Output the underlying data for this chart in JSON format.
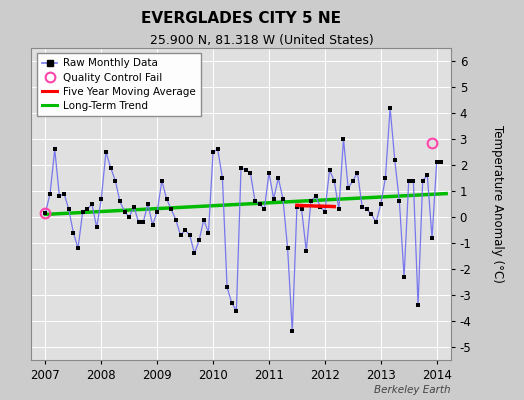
{
  "title": "EVERGLADES CITY 5 NE",
  "subtitle": "25.900 N, 81.318 W (United States)",
  "ylabel": "Temperature Anomaly (°C)",
  "watermark": "Berkeley Earth",
  "ylim": [
    -5.5,
    6.5
  ],
  "yticks": [
    -5,
    -4,
    -3,
    -2,
    -1,
    0,
    1,
    2,
    3,
    4,
    5,
    6
  ],
  "xlim": [
    2006.75,
    2014.25
  ],
  "xticks": [
    2007,
    2008,
    2009,
    2010,
    2011,
    2012,
    2013,
    2014
  ],
  "background_color": "#cccccc",
  "plot_bg_color": "#e0e0e0",
  "raw_data": {
    "x": [
      2007.0,
      2007.083,
      2007.167,
      2007.25,
      2007.333,
      2007.417,
      2007.5,
      2007.583,
      2007.667,
      2007.75,
      2007.833,
      2007.917,
      2008.0,
      2008.083,
      2008.167,
      2008.25,
      2008.333,
      2008.417,
      2008.5,
      2008.583,
      2008.667,
      2008.75,
      2008.833,
      2008.917,
      2009.0,
      2009.083,
      2009.167,
      2009.25,
      2009.333,
      2009.417,
      2009.5,
      2009.583,
      2009.667,
      2009.75,
      2009.833,
      2009.917,
      2010.0,
      2010.083,
      2010.167,
      2010.25,
      2010.333,
      2010.417,
      2010.5,
      2010.583,
      2010.667,
      2010.75,
      2010.833,
      2010.917,
      2011.0,
      2011.083,
      2011.167,
      2011.25,
      2011.333,
      2011.417,
      2011.5,
      2011.583,
      2011.667,
      2011.75,
      2011.833,
      2011.917,
      2012.0,
      2012.083,
      2012.167,
      2012.25,
      2012.333,
      2012.417,
      2012.5,
      2012.583,
      2012.667,
      2012.75,
      2012.833,
      2012.917,
      2013.0,
      2013.083,
      2013.167,
      2013.25,
      2013.333,
      2013.417,
      2013.5,
      2013.583,
      2013.667,
      2013.75,
      2013.833,
      2013.917,
      2014.0,
      2014.083
    ],
    "y": [
      0.15,
      0.9,
      2.6,
      0.8,
      0.9,
      0.3,
      -0.6,
      -1.2,
      0.2,
      0.3,
      0.5,
      -0.4,
      0.7,
      2.5,
      1.9,
      1.4,
      0.6,
      0.2,
      0.0,
      0.4,
      -0.2,
      -0.2,
      0.5,
      -0.3,
      0.2,
      1.4,
      0.7,
      0.3,
      -0.1,
      -0.7,
      -0.5,
      -0.7,
      -1.4,
      -0.9,
      -0.1,
      -0.6,
      2.5,
      2.6,
      1.5,
      -2.7,
      -3.3,
      -3.6,
      1.9,
      1.8,
      1.7,
      0.6,
      0.5,
      0.3,
      1.7,
      0.7,
      1.5,
      0.7,
      -1.2,
      -4.4,
      0.4,
      0.3,
      -1.3,
      0.6,
      0.8,
      0.4,
      0.2,
      1.8,
      1.4,
      0.3,
      3.0,
      1.1,
      1.4,
      1.7,
      0.4,
      0.3,
      0.1,
      -0.2,
      0.5,
      1.5,
      4.2,
      2.2,
      0.6,
      -2.3,
      1.4,
      1.4,
      -3.4,
      1.4,
      1.6,
      -0.8,
      2.1,
      2.1
    ]
  },
  "qc_fail": {
    "x": [
      2007.0,
      2013.917
    ],
    "y": [
      0.15,
      2.85
    ]
  },
  "five_year_ma": {
    "x": [
      2011.5,
      2011.583,
      2011.667,
      2011.75,
      2011.833,
      2011.917,
      2012.0,
      2012.083,
      2012.167
    ],
    "y": [
      0.45,
      0.44,
      0.43,
      0.43,
      0.42,
      0.42,
      0.41,
      0.41,
      0.4
    ]
  },
  "trend": {
    "x": [
      2007.0,
      2014.17
    ],
    "y": [
      0.1,
      0.9
    ]
  },
  "colors": {
    "raw_line": "#7777ee",
    "raw_marker": "#000000",
    "qc_fail": "#ff44aa",
    "five_year_ma": "#ff0000",
    "trend": "#00bb00"
  }
}
